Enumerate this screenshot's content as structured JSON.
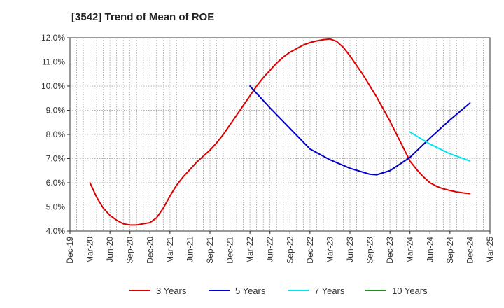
{
  "chart_data": {
    "type": "line",
    "title": "[3542]  Trend of Mean of ROE",
    "xlabel": "",
    "ylabel": "",
    "x_ticks": [
      "Dec-19",
      "Mar-20",
      "Jun-20",
      "Sep-20",
      "Dec-20",
      "Mar-21",
      "Jun-21",
      "Sep-21",
      "Dec-21",
      "Mar-22",
      "Jun-22",
      "Sep-22",
      "Dec-22",
      "Mar-23",
      "Jun-23",
      "Sep-23",
      "Dec-23",
      "Mar-24",
      "Jun-24",
      "Sep-24",
      "Dec-24",
      "Mar-25"
    ],
    "y_ticks": [
      "4.0%",
      "5.0%",
      "6.0%",
      "7.0%",
      "8.0%",
      "9.0%",
      "10.0%",
      "11.0%",
      "12.0%"
    ],
    "ylim": [
      4.0,
      12.0
    ],
    "grid": true,
    "legend_position": "bottom",
    "series": [
      {
        "name": "3 Years",
        "color": "#dd0000",
        "x": [
          "Mar-20",
          "Apr-20",
          "May-20",
          "Jun-20",
          "Jul-20",
          "Aug-20",
          "Sep-20",
          "Oct-20",
          "Nov-20",
          "Dec-20",
          "Jan-21",
          "Feb-21",
          "Mar-21",
          "Apr-21",
          "May-21",
          "Jun-21",
          "Jul-21",
          "Aug-21",
          "Sep-21",
          "Oct-21",
          "Nov-21",
          "Dec-21",
          "Jan-22",
          "Feb-22",
          "Mar-22",
          "Apr-22",
          "May-22",
          "Jun-22",
          "Jul-22",
          "Aug-22",
          "Sep-22",
          "Oct-22",
          "Nov-22",
          "Dec-22",
          "Jan-23",
          "Feb-23",
          "Mar-23",
          "Apr-23",
          "May-23",
          "Jun-23",
          "Jul-23",
          "Aug-23",
          "Sep-23",
          "Oct-23",
          "Nov-23",
          "Dec-23",
          "Jan-24",
          "Feb-24",
          "Mar-24",
          "Apr-24",
          "May-24",
          "Jun-24",
          "Jul-24",
          "Aug-24",
          "Sep-24",
          "Oct-24",
          "Nov-24",
          "Dec-24"
        ],
        "values": [
          6.0,
          5.4,
          4.95,
          4.65,
          4.45,
          4.3,
          4.25,
          4.25,
          4.3,
          4.35,
          4.55,
          4.95,
          5.45,
          5.9,
          6.25,
          6.55,
          6.85,
          7.1,
          7.35,
          7.65,
          8.0,
          8.4,
          8.8,
          9.2,
          9.6,
          10.0,
          10.35,
          10.65,
          10.95,
          11.2,
          11.4,
          11.55,
          11.7,
          11.8,
          11.87,
          11.92,
          11.95,
          11.85,
          11.6,
          11.25,
          10.85,
          10.45,
          10.0,
          9.55,
          9.05,
          8.55,
          8.0,
          7.45,
          6.9,
          6.55,
          6.25,
          6.0,
          5.85,
          5.75,
          5.68,
          5.62,
          5.58,
          5.55
        ]
      },
      {
        "name": "5 Years",
        "color": "#0000cc",
        "x": [
          "Mar-22",
          "Jun-22",
          "Sep-22",
          "Dec-22",
          "Mar-23",
          "Jun-23",
          "Sep-23",
          "Oct-23",
          "Dec-23",
          "Mar-24",
          "Jun-24",
          "Sep-24",
          "Dec-24"
        ],
        "values": [
          10.0,
          9.1,
          8.25,
          7.4,
          6.95,
          6.6,
          6.35,
          6.33,
          6.5,
          7.05,
          7.85,
          8.6,
          9.3
        ]
      },
      {
        "name": "7 Years",
        "color": "#00e5ee",
        "x": [
          "Mar-24",
          "Jun-24",
          "Sep-24",
          "Dec-24"
        ],
        "values": [
          8.1,
          7.6,
          7.2,
          6.9
        ]
      },
      {
        "name": "10 Years",
        "color": "#228b22",
        "x": [],
        "values": []
      }
    ]
  }
}
